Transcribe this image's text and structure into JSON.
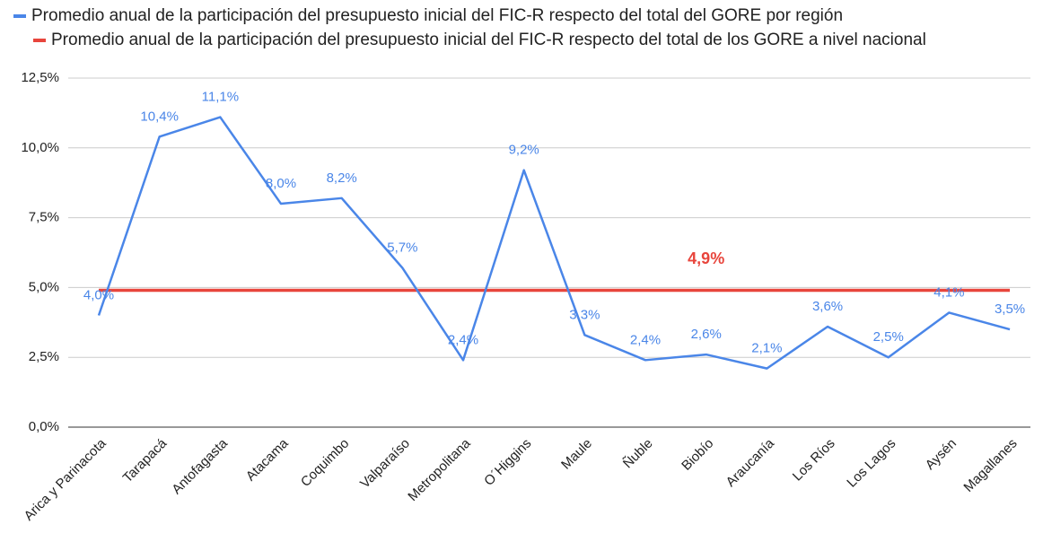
{
  "chart_data": {
    "type": "line",
    "categories": [
      "Arica y Parinacota",
      "Tarapacá",
      "Antofagasta",
      "Atacama",
      "Coquimbo",
      "Valparaíso",
      "Metropolitana",
      "O´Higgins",
      "Maule",
      "Ñuble",
      "Biobío",
      "Araucanía",
      "Los Ríos",
      "Los Lagos",
      "Aysén",
      "Magallanes"
    ],
    "series": [
      {
        "name": "Promedio anual de la participación del presupuesto inicial del FIC-R respecto del total del GORE por región",
        "color": "#4a86e8",
        "values": [
          4.0,
          10.4,
          11.1,
          8.0,
          8.2,
          5.7,
          2.4,
          9.2,
          3.3,
          2.4,
          2.6,
          2.1,
          3.6,
          2.5,
          4.1,
          3.5
        ],
        "value_labels": [
          "4,0%",
          "10,4%",
          "11,1%",
          "8,0%",
          "8,2%",
          "5,7%",
          "2,4%",
          "9,2%",
          "3,3%",
          "2,4%",
          "2,6%",
          "2,1%",
          "3,6%",
          "2,5%",
          "4,1%",
          "3,5%"
        ]
      },
      {
        "name": "Promedio anual de la participación del presupuesto inicial del FIC-R respecto del total de los GORE a nivel nacional",
        "color": "#e8453c",
        "values": [
          4.9,
          4.9,
          4.9,
          4.9,
          4.9,
          4.9,
          4.9,
          4.9,
          4.9,
          4.9,
          4.9,
          4.9,
          4.9,
          4.9,
          4.9,
          4.9
        ],
        "value_labels": [
          null,
          null,
          null,
          null,
          null,
          null,
          null,
          null,
          null,
          null,
          "4,9%",
          null,
          null,
          null,
          null,
          null
        ]
      }
    ],
    "ylim": [
      0,
      12.5
    ],
    "yticks": [
      {
        "value": 0,
        "label": "0,0%"
      },
      {
        "value": 2.5,
        "label": "2,5%"
      },
      {
        "value": 5,
        "label": "5,0%"
      },
      {
        "value": 7.5,
        "label": "7,5%"
      },
      {
        "value": 10,
        "label": "10,0%"
      },
      {
        "value": 12.5,
        "label": "12,5%"
      }
    ],
    "grid": true,
    "legend": "top"
  }
}
